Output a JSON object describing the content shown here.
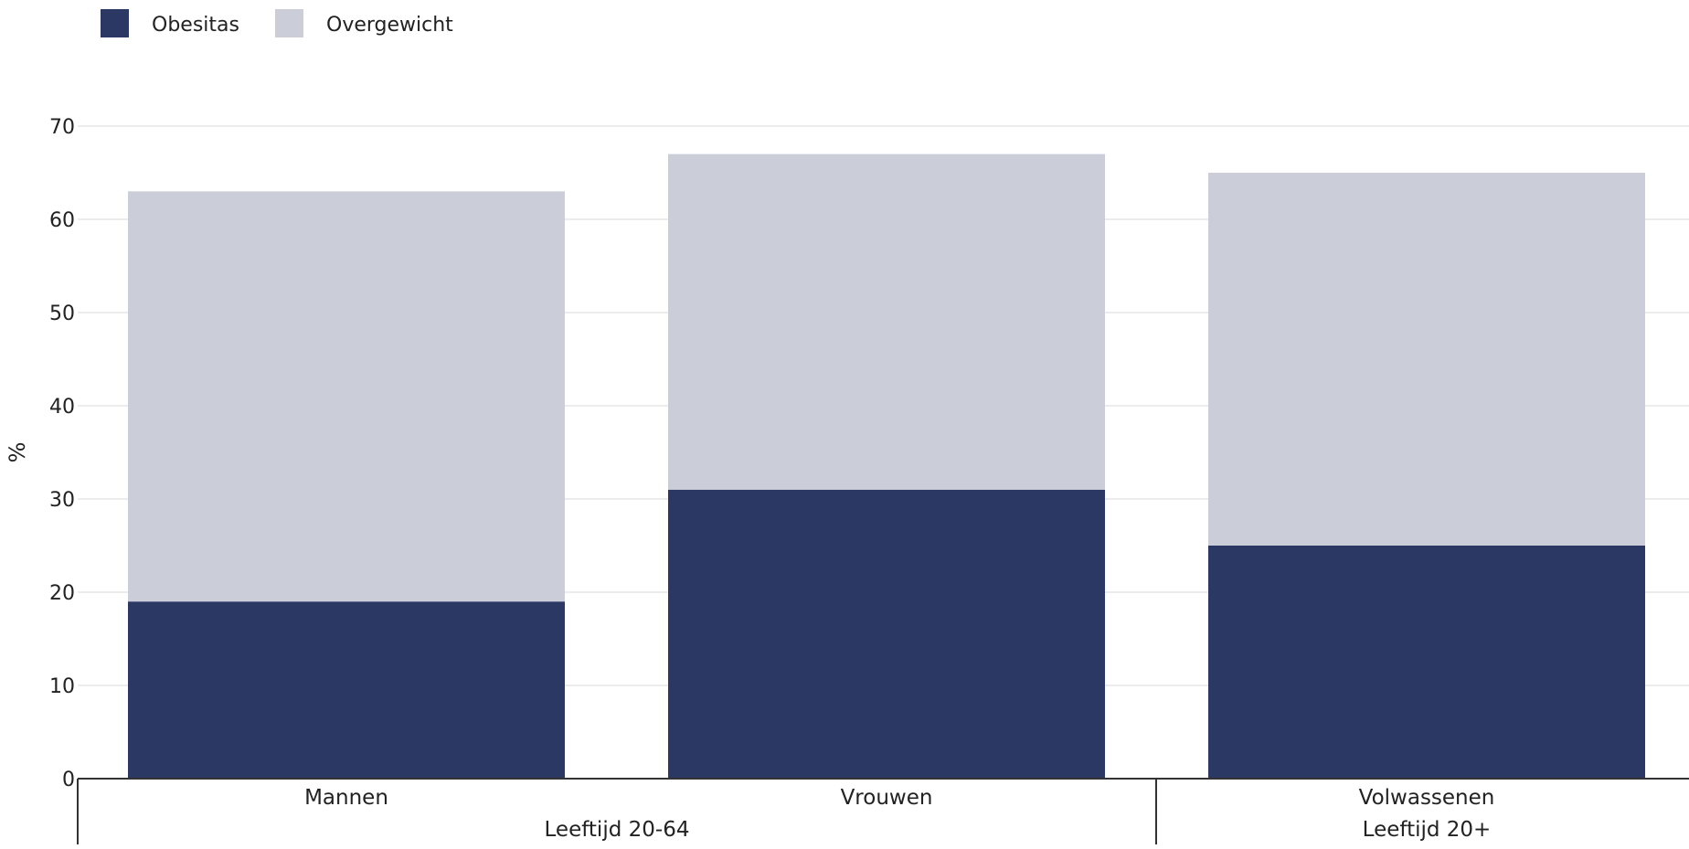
{
  "chart_data": {
    "type": "bar",
    "stacked": true,
    "ylabel": "%",
    "ylim": [
      0,
      70
    ],
    "yticks": [
      0,
      10,
      20,
      30,
      40,
      50,
      60,
      70
    ],
    "grid": true,
    "legend_position": "top-left",
    "categories": [
      "Mannen",
      "Vrouwen",
      "Volwassenen"
    ],
    "groups": [
      {
        "label": "Leeftijd 20-64",
        "categories": [
          "Mannen",
          "Vrouwen"
        ]
      },
      {
        "label": "Leeftijd 20+",
        "categories": [
          "Volwassenen"
        ]
      }
    ],
    "series": [
      {
        "name": "Obesitas",
        "color": "#2b3863",
        "values": [
          19,
          31,
          25
        ]
      },
      {
        "name": "Overgewicht",
        "color": "#cbcdd9",
        "values": [
          44,
          36,
          40
        ]
      }
    ]
  }
}
